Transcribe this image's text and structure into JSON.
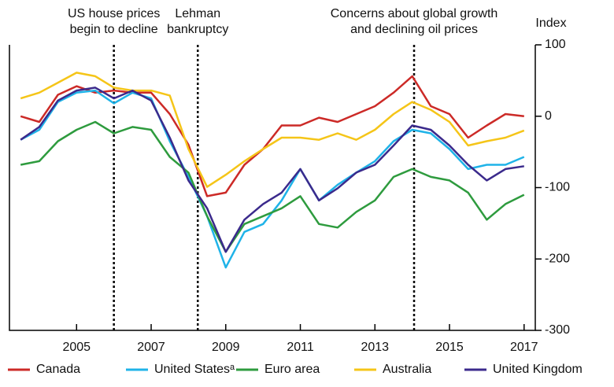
{
  "chart_data": {
    "type": "line",
    "y_label": "Index",
    "x": [
      2003.5,
      2004.0,
      2004.5,
      2005.0,
      2005.5,
      2006.0,
      2006.5,
      2007.0,
      2007.5,
      2008.0,
      2008.5,
      2009.0,
      2009.5,
      2010.0,
      2010.5,
      2011.0,
      2011.5,
      2012.0,
      2012.5,
      2013.0,
      2013.5,
      2014.0,
      2014.5,
      2015.0,
      2015.5,
      2016.0,
      2016.5,
      2017.0
    ],
    "xlim": [
      2003.2,
      2017.3
    ],
    "xticks": [
      2005,
      2007,
      2009,
      2011,
      2013,
      2015,
      2017
    ],
    "ylim": [
      -300,
      100
    ],
    "yticks": [
      -300,
      -200,
      -100,
      0,
      100
    ],
    "y_axis_side": "right",
    "legend": "bottom",
    "series": [
      {
        "name": "Canada",
        "color": "#cc2a27",
        "values": [
          0,
          -8,
          30,
          42,
          33,
          36,
          33,
          33,
          3,
          -40,
          -112,
          -107,
          -68,
          -46,
          -13,
          -13,
          -2,
          -8,
          3,
          14,
          33,
          56,
          14,
          3,
          -30,
          -13,
          3,
          0
        ]
      },
      {
        "name": "United Statesᵃ",
        "color": "#1fb3e8",
        "values": [
          -33,
          -19,
          20,
          33,
          36,
          18,
          33,
          25,
          -35,
          -85,
          -140,
          -212,
          -162,
          -151,
          -118,
          -74,
          -118,
          -96,
          -79,
          -63,
          -35,
          -19,
          -24,
          -46,
          -74,
          -68,
          -68,
          -57
        ]
      },
      {
        "name": "Euro area",
        "color": "#2e9b3e",
        "values": [
          -68,
          -63,
          -35,
          -19,
          -8,
          -24,
          -15,
          -19,
          -57,
          -79,
          -140,
          -190,
          -151,
          -140,
          -129,
          -112,
          -151,
          -156,
          -134,
          -118,
          -85,
          -74,
          -85,
          -90,
          -107,
          -145,
          -123,
          -110
        ]
      },
      {
        "name": "Australia",
        "color": "#f5c518",
        "values": [
          25,
          33,
          47,
          61,
          56,
          40,
          36,
          36,
          29,
          -46,
          -99,
          -82,
          -63,
          -46,
          -30,
          -30,
          -33,
          -24,
          -33,
          -19,
          3,
          20,
          9,
          -8,
          -41,
          -35,
          -30,
          -20
        ]
      },
      {
        "name": "United Kingdom",
        "color": "#3b2a8c",
        "values": [
          -33,
          -15,
          22,
          36,
          40,
          25,
          36,
          22,
          -30,
          -90,
          -129,
          -190,
          -145,
          -123,
          -107,
          -74,
          -118,
          -101,
          -79,
          -68,
          -41,
          -13,
          -19,
          -41,
          -68,
          -90,
          -74,
          -70
        ]
      }
    ],
    "events": [
      {
        "x": 2006.0,
        "label": [
          "US house prices",
          "begin to decline"
        ]
      },
      {
        "x": 2008.25,
        "label": [
          "Lehman",
          "bankruptcy"
        ]
      },
      {
        "x": 2014.05,
        "label": [
          "Concerns about global growth",
          "and declining oil prices"
        ]
      }
    ]
  }
}
